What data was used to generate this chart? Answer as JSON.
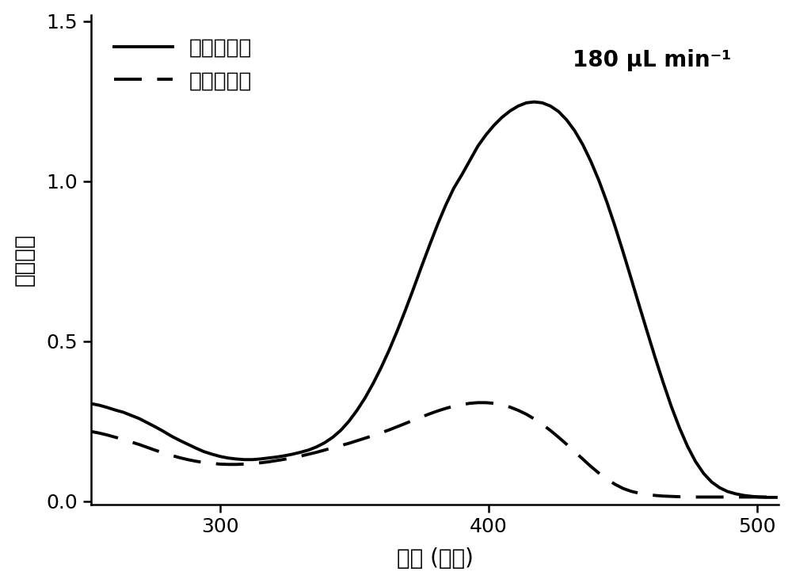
{
  "title_annotation": "180 μL min⁻¹",
  "xlabel": "波长 (纳米)",
  "ylabel": "吸光强度",
  "legend_solid": "过滤降解前",
  "legend_dashed": "过滤降解后",
  "xlim": [
    252,
    508
  ],
  "ylim": [
    -0.01,
    1.52
  ],
  "xticks": [
    300,
    400,
    500
  ],
  "yticks": [
    0.0,
    0.5,
    1.0,
    1.5
  ],
  "solid_x": [
    252,
    255,
    258,
    261,
    264,
    267,
    270,
    273,
    276,
    279,
    282,
    285,
    288,
    291,
    294,
    297,
    300,
    303,
    306,
    309,
    312,
    315,
    318,
    321,
    324,
    327,
    330,
    333,
    336,
    339,
    342,
    345,
    348,
    351,
    354,
    357,
    360,
    363,
    366,
    369,
    372,
    375,
    378,
    381,
    384,
    387,
    390,
    393,
    396,
    399,
    402,
    405,
    408,
    411,
    414,
    417,
    420,
    423,
    426,
    429,
    432,
    435,
    438,
    441,
    444,
    447,
    450,
    453,
    456,
    459,
    462,
    465,
    468,
    471,
    474,
    477,
    480,
    483,
    486,
    489,
    492,
    495,
    498,
    501,
    504,
    507
  ],
  "solid_y": [
    0.305,
    0.3,
    0.293,
    0.285,
    0.278,
    0.268,
    0.258,
    0.245,
    0.232,
    0.218,
    0.203,
    0.19,
    0.178,
    0.166,
    0.155,
    0.147,
    0.14,
    0.135,
    0.132,
    0.13,
    0.13,
    0.132,
    0.135,
    0.138,
    0.142,
    0.147,
    0.153,
    0.16,
    0.17,
    0.183,
    0.2,
    0.222,
    0.25,
    0.284,
    0.323,
    0.368,
    0.418,
    0.473,
    0.533,
    0.597,
    0.664,
    0.733,
    0.8,
    0.865,
    0.925,
    0.978,
    1.02,
    1.065,
    1.11,
    1.145,
    1.175,
    1.2,
    1.22,
    1.235,
    1.245,
    1.248,
    1.245,
    1.235,
    1.218,
    1.192,
    1.158,
    1.115,
    1.063,
    1.003,
    0.935,
    0.86,
    0.78,
    0.697,
    0.613,
    0.53,
    0.448,
    0.37,
    0.296,
    0.23,
    0.172,
    0.124,
    0.087,
    0.06,
    0.042,
    0.03,
    0.023,
    0.018,
    0.015,
    0.013,
    0.012,
    0.012
  ],
  "dashed_x": [
    252,
    255,
    258,
    261,
    264,
    267,
    270,
    273,
    276,
    279,
    282,
    285,
    288,
    291,
    294,
    297,
    300,
    303,
    306,
    309,
    312,
    315,
    318,
    321,
    324,
    327,
    330,
    333,
    336,
    339,
    342,
    345,
    348,
    351,
    354,
    357,
    360,
    363,
    366,
    369,
    372,
    375,
    378,
    381,
    384,
    387,
    390,
    393,
    396,
    399,
    402,
    405,
    408,
    411,
    414,
    417,
    420,
    423,
    426,
    429,
    432,
    435,
    438,
    441,
    444,
    447,
    450,
    453,
    456,
    459,
    462,
    465,
    468,
    471,
    474,
    477,
    480,
    483,
    486,
    489,
    492,
    495,
    498,
    501,
    504,
    507
  ],
  "dashed_y": [
    0.218,
    0.213,
    0.207,
    0.2,
    0.193,
    0.185,
    0.177,
    0.168,
    0.159,
    0.151,
    0.143,
    0.136,
    0.13,
    0.125,
    0.121,
    0.118,
    0.116,
    0.115,
    0.115,
    0.116,
    0.118,
    0.12,
    0.123,
    0.127,
    0.131,
    0.136,
    0.141,
    0.147,
    0.153,
    0.16,
    0.167,
    0.174,
    0.181,
    0.189,
    0.197,
    0.205,
    0.214,
    0.223,
    0.233,
    0.243,
    0.253,
    0.263,
    0.273,
    0.282,
    0.29,
    0.297,
    0.302,
    0.306,
    0.308,
    0.308,
    0.306,
    0.301,
    0.294,
    0.284,
    0.272,
    0.257,
    0.24,
    0.221,
    0.2,
    0.178,
    0.155,
    0.132,
    0.109,
    0.088,
    0.069,
    0.053,
    0.04,
    0.031,
    0.025,
    0.021,
    0.018,
    0.016,
    0.015,
    0.014,
    0.014,
    0.013,
    0.013,
    0.013,
    0.013,
    0.013,
    0.013,
    0.013,
    0.013,
    0.013,
    0.013,
    0.013
  ],
  "line_color": "#000000",
  "bg_color": "#ffffff",
  "linewidth_solid": 2.8,
  "linewidth_dashed": 2.8,
  "fontsize_label": 20,
  "fontsize_tick": 18,
  "fontsize_legend": 19,
  "fontsize_annotation": 20
}
